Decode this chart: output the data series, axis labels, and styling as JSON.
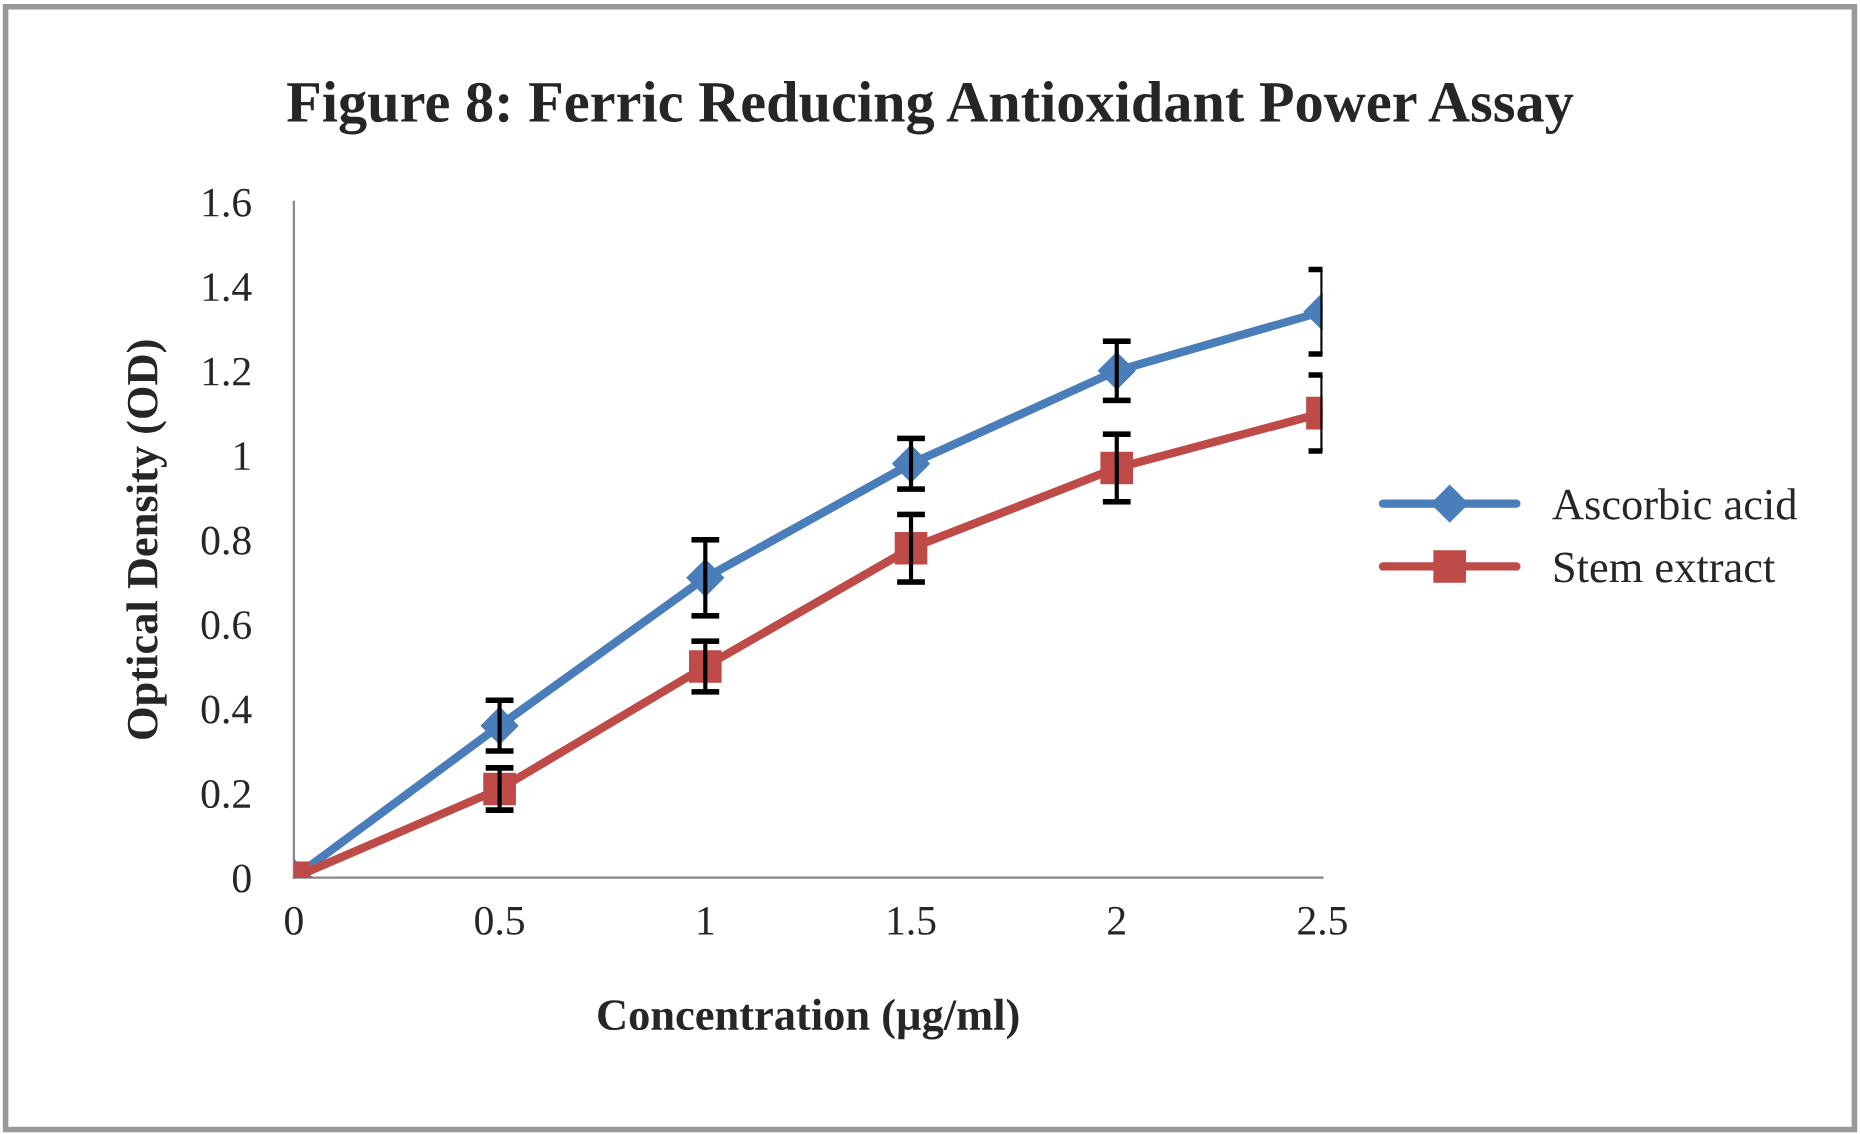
{
  "chart_data": {
    "type": "line",
    "title": "Figure 8: Ferric Reducing Antioxidant Power Assay",
    "xlabel": "Concentration (µg/ml)",
    "ylabel": "Optical Density (OD)",
    "categories": [
      "0",
      "0.5",
      "1",
      "1.5",
      "2",
      "2.5"
    ],
    "series": [
      {
        "name": "Ascorbic acid",
        "color": "#4a7ebb",
        "marker": "diamond",
        "values": [
          0,
          0.36,
          0.71,
          0.98,
          1.2,
          1.34
        ],
        "errors": [
          null,
          0.06,
          0.09,
          0.06,
          0.07,
          0.1
        ]
      },
      {
        "name": "Stem extract",
        "color": "#be4b48",
        "marker": "square",
        "values": [
          0,
          0.21,
          0.5,
          0.78,
          0.97,
          1.1
        ],
        "errors": [
          null,
          0.05,
          0.06,
          0.08,
          0.08,
          0.09
        ]
      }
    ],
    "ylim": [
      0,
      1.6
    ],
    "yticks": [
      0,
      0.2,
      0.4,
      0.6,
      0.8,
      1,
      1.2,
      1.4,
      1.6
    ],
    "grid": false,
    "legend": "right",
    "line_style": "solid"
  }
}
